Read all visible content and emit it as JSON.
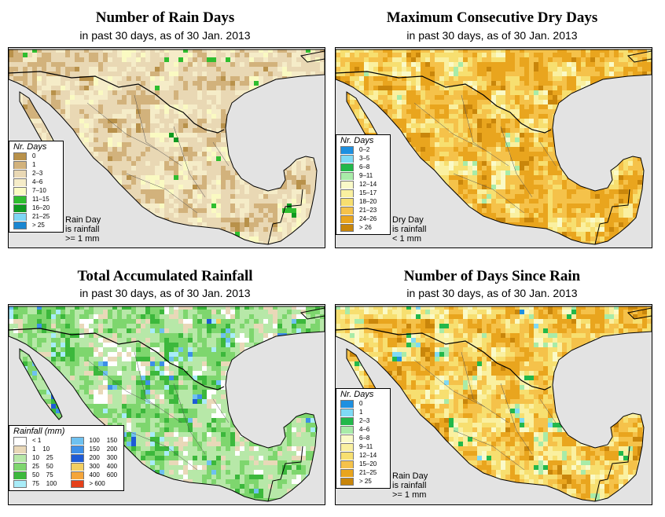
{
  "panels": [
    {
      "title": "Number of Rain Days",
      "subtitle": "in past 30 days, as of  30 Jan. 2013",
      "legend_title": "Nr. Days",
      "legend": [
        {
          "label": "0",
          "color": "#b8914a"
        },
        {
          "label": "1",
          "color": "#d2b27c"
        },
        {
          "label": "2–3",
          "color": "#e9d8b4"
        },
        {
          "label": "4–6",
          "color": "#f5ecc8"
        },
        {
          "label": "7–10",
          "color": "#fafac2"
        },
        {
          "label": "11–15",
          "color": "#2fbe2f"
        },
        {
          "label": "16–20",
          "color": "#0e9a20"
        },
        {
          "label": "21–25",
          "color": "#7fd6f5"
        },
        {
          "label": "> 25",
          "color": "#1a86d1"
        }
      ],
      "note": "Rain Day\nis rainfall\n>= 1 mm"
    },
    {
      "title": "Maximum Consecutive Dry Days",
      "subtitle": "in past 30 days, as of  30 Jan. 2013",
      "legend_title": "Nr. Days",
      "legend": [
        {
          "label": "0–2",
          "color": "#1e90e0"
        },
        {
          "label": "3–5",
          "color": "#7fdaf5"
        },
        {
          "label": "6–8",
          "color": "#22b84a"
        },
        {
          "label": "9–11",
          "color": "#a8eba8"
        },
        {
          "label": "12–14",
          "color": "#fafac8"
        },
        {
          "label": "15–17",
          "color": "#faf0a0"
        },
        {
          "label": "18–20",
          "color": "#f7df70"
        },
        {
          "label": "21–23",
          "color": "#f5c24a"
        },
        {
          "label": "24–26",
          "color": "#e9a51e"
        },
        {
          "label": "> 26",
          "color": "#c9860b"
        }
      ],
      "note": "Dry Day\nis rainfall\n< 1 mm"
    },
    {
      "title": "Total Accumulated Rainfall",
      "subtitle": "in past 30 days, as of  30 Jan. 2013",
      "legend_title": "Rainfall (mm)",
      "legend": [
        {
          "label": "< 1",
          "color": "#ffffff"
        },
        {
          "label": "1    10",
          "color": "#e9d8b8"
        },
        {
          "label": "10    25",
          "color": "#b7e8a8"
        },
        {
          "label": "25    50",
          "color": "#7ed66e"
        },
        {
          "label": "50    75",
          "color": "#3cb83c"
        },
        {
          "label": "75    100",
          "color": "#a8ecf8"
        },
        {
          "label": "100    150",
          "color": "#6ec1f0"
        },
        {
          "label": "150    200",
          "color": "#3d8fe8"
        },
        {
          "label": "200    300",
          "color": "#1e5bd6"
        },
        {
          "label": "300    400",
          "color": "#f3cf62"
        },
        {
          "label": "400    600",
          "color": "#f4a53a"
        },
        {
          "label": "> 600",
          "color": "#e5401a"
        }
      ],
      "note": ""
    },
    {
      "title": "Number of Days Since Rain",
      "subtitle": "in past 30 days, as of  30 Jan. 2013",
      "legend_title": "Nr. Days",
      "legend": [
        {
          "label": "0",
          "color": "#1e90e0"
        },
        {
          "label": "1",
          "color": "#7fdaf5"
        },
        {
          "label": "2–3",
          "color": "#22b84a"
        },
        {
          "label": "4–6",
          "color": "#a8eba8"
        },
        {
          "label": "6–8",
          "color": "#fafac8"
        },
        {
          "label": "9–11",
          "color": "#faf0a0"
        },
        {
          "label": "12–14",
          "color": "#f7df70"
        },
        {
          "label": "15–20",
          "color": "#f5c24a"
        },
        {
          "label": "21–25",
          "color": "#e9a51e"
        },
        {
          "label": "> 25",
          "color": "#c9860b"
        }
      ],
      "note": "Rain Day\nis rainfall\n>= 1 mm"
    }
  ],
  "colors": {
    "ocean": "#e3e3e3",
    "border": "#000000"
  }
}
